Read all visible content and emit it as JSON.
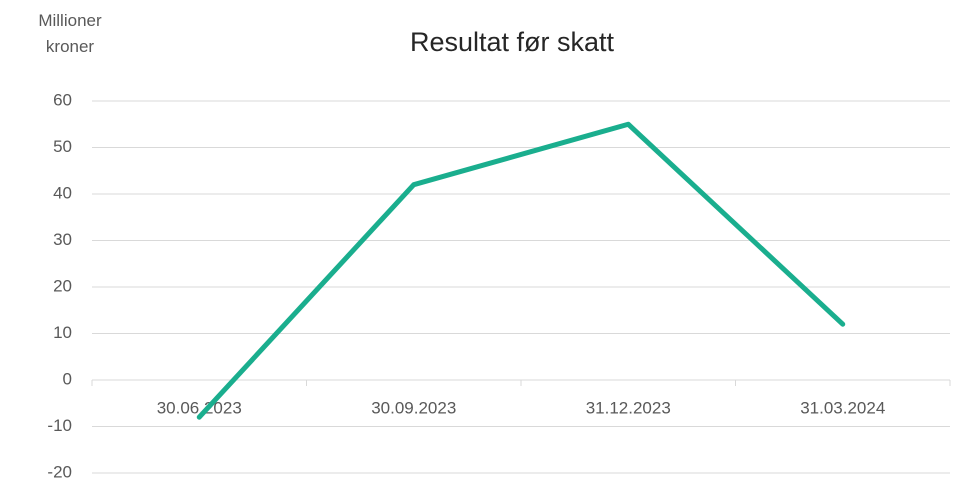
{
  "chart_data": {
    "type": "line",
    "title": "Resultat før skatt",
    "y_label": "Millioner kroner",
    "categories": [
      "30.06.2023",
      "30.09.2023",
      "31.12.2023",
      "31.03.2024"
    ],
    "series": [
      {
        "name": "Resultat før skatt",
        "color": "#1aae8e",
        "values": [
          -8,
          42,
          55,
          12
        ]
      }
    ],
    "ylim": [
      -20,
      60
    ],
    "yticks": [
      -20,
      -10,
      0,
      10,
      20,
      30,
      40,
      50,
      60
    ],
    "grid": true
  }
}
